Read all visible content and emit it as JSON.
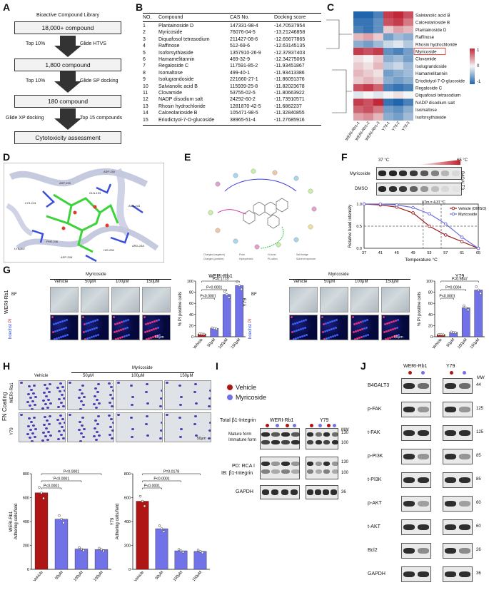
{
  "panels": {
    "a": "A",
    "b": "B",
    "c": "C",
    "d": "D",
    "e": "E",
    "f": "F",
    "g": "G",
    "h": "H",
    "i": "I",
    "j": "J"
  },
  "flow": {
    "library_title": "Bioactive Compound Library",
    "boxes": [
      "18,000+ compound",
      "1,800 compound",
      "180 compound",
      "Cytotoxicity assessment"
    ],
    "steps": [
      {
        "left": "Top 10%",
        "right": "Glide HTVS"
      },
      {
        "left": "Top 10%",
        "right": "Glide SP docking"
      },
      {
        "left": "Glide XP docking",
        "right": "Top 15 compounds"
      }
    ]
  },
  "table": {
    "headers": [
      "NO.",
      "Compound",
      "CAS No.",
      "Docking score"
    ],
    "rows": [
      [
        "1",
        "Plantainoside D",
        "147331-98-4",
        "-14.70537954"
      ],
      [
        "2",
        "Myricoside",
        "76076-04-5",
        "-13.21246858"
      ],
      [
        "3",
        "Diquafosol tetrasodium",
        "211427-08-6",
        "-12.65677865"
      ],
      [
        "4",
        "Raffinose",
        "512-69-6",
        "-12.63145135"
      ],
      [
        "5",
        "Isoforsythiaside",
        "1357910-26-9",
        "-12.37837403"
      ],
      [
        "6",
        "Hamamelitannin",
        "469-32-9",
        "-12.34275065"
      ],
      [
        "7",
        "Regaloside C",
        "117591-85-2",
        "-11.93451867"
      ],
      [
        "8",
        "Isomaltose",
        "499-40-1",
        "-11.93413386"
      ],
      [
        "9",
        "Isolugrandoside",
        "221660-27-1",
        "-11.86091376"
      ],
      [
        "10",
        "Salvianolic acid B",
        "115939-25-8",
        "-11.82023678"
      ],
      [
        "11",
        "Clovamide",
        "53755-02-5",
        "-11.80663922"
      ],
      [
        "12",
        "NADP disodium salt",
        "24292-60-2",
        "-11.73910571"
      ],
      [
        "13",
        "Rhosin hydrochloride",
        "1281870-42-5",
        "-11.6862237"
      ],
      [
        "14",
        "Calceolarioside B",
        "105471-98-5",
        "-11.32840855"
      ],
      [
        "15",
        "Eriodictyol-7-O-glucoside",
        "38965-51-4",
        "-11.27685916"
      ]
    ]
  },
  "heatmap": {
    "rows": [
      "Salvianolic acid B",
      "Calceolarioside B",
      "Plantainoside D",
      "Raffinose",
      "Rhosin hydrochloride",
      "Myricoside",
      "Clovamide",
      "Isolugrandoside",
      "Hamamelitannin",
      "Eriodictyol-7-O-glucoside",
      "Regaloside C",
      "Diquafosol tetrasodium",
      "NADP disodium salt",
      "Isomaltose",
      "Isoforsythiaside"
    ],
    "cols": [
      "WERI-Rb1-1",
      "WERI-Rb1-2",
      "WERI-Rb1-3",
      "Y79-1",
      "Y79-2",
      "Y79-3"
    ],
    "values": [
      [
        -1,
        -1,
        -0.8,
        0.9,
        1,
        0.8
      ],
      [
        -0.9,
        -0.9,
        -0.7,
        0.8,
        0.9,
        0.6
      ],
      [
        -0.8,
        -0.9,
        -0.7,
        0.2,
        0.4,
        0.3
      ],
      [
        0.3,
        0.4,
        0.2,
        -0.6,
        -0.4,
        -0.5
      ],
      [
        -0.5,
        -0.6,
        -0.4,
        -0.2,
        -0.1,
        -0.3
      ],
      [
        0.9,
        0.8,
        0.9,
        -0.7,
        -0.8,
        -0.6
      ],
      [
        0.1,
        0.0,
        0.2,
        -0.5,
        -0.4,
        -0.6
      ],
      [
        0.2,
        0.1,
        0.3,
        -0.3,
        -0.2,
        -0.4
      ],
      [
        0.3,
        0.2,
        0.1,
        -0.6,
        -0.5,
        -0.4
      ],
      [
        0.2,
        0.3,
        0.2,
        -0.5,
        -0.6,
        -0.5
      ],
      [
        0.8,
        0.9,
        0.7,
        -0.8,
        -0.9,
        -0.8
      ],
      [
        -0.1,
        0.0,
        -0.1,
        0.0,
        0.1,
        0.0
      ],
      [
        0.9,
        0.8,
        1,
        -0.9,
        -1,
        -0.8
      ],
      [
        0.7,
        0.8,
        0.6,
        -0.6,
        -0.7,
        -0.5
      ],
      [
        0.4,
        0.5,
        0.3,
        -0.5,
        -0.6,
        -0.4
      ]
    ],
    "highlight": "Myricoside",
    "scale_labels": [
      "1",
      "0",
      "-1"
    ],
    "colors": {
      "high": "#c0283a",
      "mid": "#f4f4f4",
      "low": "#2166ac"
    }
  },
  "docking_labels": [
    "ASP-150",
    "ASP-199",
    "LYS-213",
    "GLN-193",
    "ASN-244",
    "PHE-246",
    "LYS-347",
    "ARG-248",
    "HIS-235",
    "ASP-298"
  ],
  "cetsa": {
    "start_temp": "37 °C",
    "end_temp": "65 °C",
    "rows": [
      "Myricoside",
      "DMSO"
    ],
    "protein": "B4GALT3",
    "delta": "ΔTm = 4.37 °C",
    "legend": [
      "Vehicle (DMSO)",
      "Myricoside"
    ],
    "colors": {
      "vehicle": "#9b1c1c",
      "myricoside": "#6a6be0"
    }
  },
  "chart_data": [
    {
      "type": "line",
      "panel": "F",
      "title": "",
      "xlabel": "Temperature °C",
      "ylabel": "Relative band intensity",
      "x": [
        37,
        41,
        45,
        49,
        53,
        57,
        61,
        65
      ],
      "xlim": [
        37,
        65
      ],
      "ylim": [
        0,
        1
      ],
      "yticks": [
        "0.0",
        "0.5",
        "1.0"
      ],
      "series": [
        {
          "name": "Vehicle (DMSO)",
          "values": [
            1.0,
            0.98,
            0.93,
            0.8,
            0.5,
            0.3,
            0.15,
            0.0
          ]
        },
        {
          "name": "Myricoside",
          "values": [
            1.0,
            1.0,
            0.98,
            0.92,
            0.78,
            0.55,
            0.25,
            0.0
          ]
        }
      ]
    },
    {
      "type": "bar",
      "panel": "G",
      "title": "WERI-Rb1",
      "ylabel": "% PI positive cells",
      "categories": [
        "Vehicle",
        "50μM",
        "100μM",
        "150μM"
      ],
      "values": [
        5,
        15,
        76,
        92
      ],
      "ylim": [
        0,
        100
      ],
      "yticks": [
        "0",
        "20",
        "40",
        "60",
        "80",
        "100"
      ],
      "pvalues": [
        "P=0.1773",
        "P<0.0001",
        "P<0.0001"
      ]
    },
    {
      "type": "bar",
      "panel": "G",
      "title": "Y79",
      "ylabel": "% PI positive cells",
      "categories": [
        "Vehicle",
        "50μM",
        "100μM",
        "150μM"
      ],
      "values": [
        4,
        8,
        52,
        84
      ],
      "ylim": [
        0,
        100
      ],
      "yticks": [
        "0",
        "20",
        "40",
        "60",
        "80",
        "100"
      ],
      "pvalues": [
        "P=0.9847",
        "P=0.0004",
        "P<0.0001"
      ]
    },
    {
      "type": "bar",
      "panel": "H",
      "title": "WERI-Rb1",
      "ylabel": "Adhering cells/field",
      "categories": [
        "Vehicle",
        "50μM",
        "100μM",
        "150μM"
      ],
      "values": [
        640,
        420,
        170,
        165
      ],
      "ylim": [
        0,
        800
      ],
      "yticks": [
        "0",
        "200",
        "400",
        "600",
        "800"
      ],
      "pvalues": [
        "P<0.0001",
        "P<0.0001",
        "P<0.0001"
      ]
    },
    {
      "type": "bar",
      "panel": "H",
      "title": "Y79",
      "ylabel": "Adhering cells/field",
      "categories": [
        "Vehicle",
        "50μM",
        "100μM",
        "150μM"
      ],
      "values": [
        570,
        340,
        155,
        150
      ],
      "ylim": [
        0,
        800
      ],
      "yticks": [
        "0",
        "200",
        "400",
        "600",
        "800"
      ],
      "pvalues": [
        "P=0.0178",
        "P<0.0001",
        "P<0.0001"
      ]
    }
  ],
  "gpanel": {
    "drug": "Myricoside",
    "cols": [
      "Vehicle",
      "50μM",
      "100μM",
      "150μM"
    ],
    "left_cell": "WERI-Rb1",
    "right_cell": "Y79",
    "bf": "BF",
    "stain_a": "hoechst",
    "stain_b": "PI",
    "scale": "50μm"
  },
  "hpanel": {
    "drug": "Myricoside",
    "cols": [
      "Vehicle",
      "50μM",
      "100μM",
      "150μM"
    ],
    "rows": [
      "WERI-Rb1",
      "Y79"
    ],
    "coating": "FN Coating",
    "scale": "50μm"
  },
  "ipanel": {
    "legend": [
      "Vehicle",
      "Myricoside"
    ],
    "cells": [
      "WERI-Rb1",
      "Y79"
    ],
    "total_label": "Total β1-Integrin",
    "mature": "Mature form",
    "immature": "Immature form",
    "pd_label": "PD: RCA I",
    "ib_label": "IB: β1-Integrin",
    "gapdh": "GAPDH",
    "mw": "MW",
    "mw_total": [
      "130",
      "100"
    ],
    "mw_pd": [
      "130",
      "100"
    ],
    "mw_gapdh": "36",
    "colors": {
      "vehicle": "#b01515",
      "myricoside": "#7272e8"
    }
  },
  "jpanel": {
    "cells": [
      "WERI-Rb1",
      "Y79"
    ],
    "mw": "MW",
    "rows": [
      {
        "label": "B4GALT3",
        "mw": "44"
      },
      {
        "label": "p-FAK",
        "mw": "125"
      },
      {
        "label": "t-FAK",
        "mw": "125"
      },
      {
        "label": "p-PI3K",
        "mw": "85"
      },
      {
        "label": "t-PI3K",
        "mw": "85"
      },
      {
        "label": "p-AKT",
        "mw": "60"
      },
      {
        "label": "t-AKT",
        "mw": "60"
      },
      {
        "label": "Bcl2",
        "mw": "26"
      },
      {
        "label": "GAPDH",
        "mw": "36"
      }
    ]
  }
}
